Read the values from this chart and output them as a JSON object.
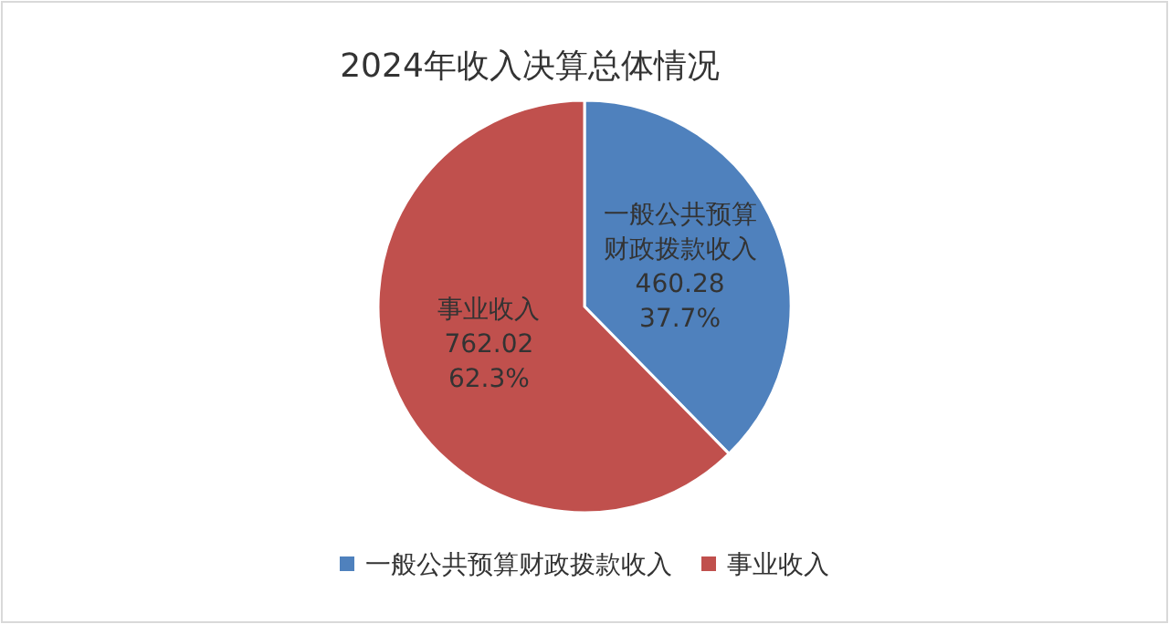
{
  "chart_data": {
    "type": "pie",
    "title": "2024年收入决算总体情况",
    "categories": [
      "一般公共预算财政拨款收入",
      "事业收入"
    ],
    "values": [
      460.28,
      762.02
    ],
    "colors": [
      "#4f81bd",
      "#c0504d"
    ],
    "value_labels": [
      "一般公共预算财政拨款收入\n460.28\n37.7%",
      "事业收入\n762.02\n62.3%"
    ],
    "legend": "bottom"
  }
}
